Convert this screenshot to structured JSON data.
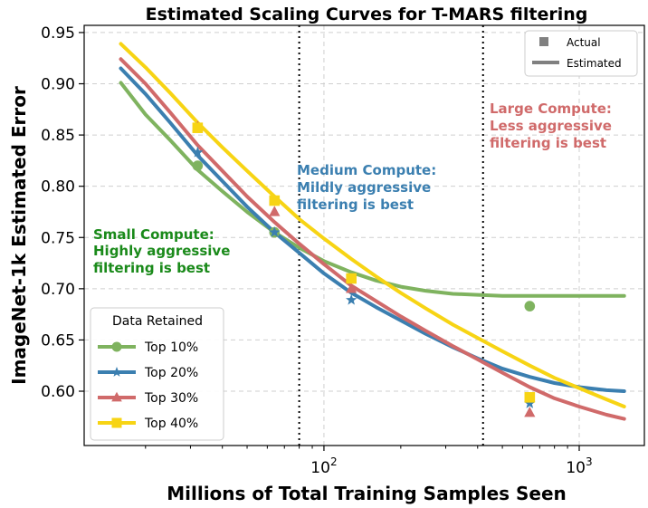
{
  "chart_data": {
    "type": "line",
    "title": "Estimated Scaling Curves for T-MARS filtering",
    "xlabel": "Millions of Total Training Samples Seen",
    "ylabel": "ImageNet-1k Estimated Error",
    "xscale": "log",
    "xlim": [
      11.5,
      1800
    ],
    "ylim": [
      0.547,
      0.957
    ],
    "x_ticks": [
      {
        "value": 100,
        "base": "10",
        "exp": "2"
      },
      {
        "value": 1000,
        "base": "10",
        "exp": "3"
      }
    ],
    "y_ticks": [
      0.6,
      0.65,
      0.7,
      0.75,
      0.8,
      0.85,
      0.9,
      0.95
    ],
    "y_tick_labels": [
      "0.60",
      "0.65",
      "0.70",
      "0.75",
      "0.80",
      "0.85",
      "0.90",
      "0.95"
    ],
    "vlines": [
      80,
      420
    ],
    "grid": true,
    "legend_title": "Data Retained",
    "series": [
      {
        "name": "Top 10%",
        "color": "#7fb35f",
        "marker": "circle",
        "curve_x": [
          16,
          20,
          25,
          32,
          40,
          50,
          64,
          80,
          100,
          128,
          160,
          200,
          250,
          320,
          400,
          500,
          640,
          800,
          1000,
          1280,
          1500
        ],
        "curve_y": [
          0.901,
          0.87,
          0.845,
          0.816,
          0.795,
          0.775,
          0.755,
          0.74,
          0.727,
          0.716,
          0.708,
          0.702,
          0.698,
          0.695,
          0.694,
          0.693,
          0.693,
          0.693,
          0.693,
          0.693,
          0.693
        ],
        "actual_x": [
          32,
          64,
          640
        ],
        "actual_y": [
          0.82,
          0.755,
          0.683
        ]
      },
      {
        "name": "Top 20%",
        "color": "#3b7fb0",
        "marker": "star",
        "curve_x": [
          16,
          20,
          25,
          32,
          40,
          50,
          64,
          80,
          100,
          128,
          160,
          200,
          250,
          320,
          400,
          500,
          640,
          800,
          1000,
          1280,
          1500
        ],
        "curve_y": [
          0.915,
          0.89,
          0.862,
          0.83,
          0.805,
          0.78,
          0.755,
          0.735,
          0.715,
          0.696,
          0.682,
          0.669,
          0.656,
          0.643,
          0.632,
          0.622,
          0.614,
          0.608,
          0.604,
          0.601,
          0.6
        ],
        "actual_x": [
          32,
          64,
          128,
          640
        ],
        "actual_y": [
          0.833,
          0.755,
          0.689,
          0.588
        ]
      },
      {
        "name": "Top 30%",
        "color": "#d06a6a",
        "marker": "triangle",
        "curve_x": [
          16,
          20,
          25,
          32,
          40,
          50,
          64,
          80,
          100,
          128,
          160,
          200,
          250,
          320,
          400,
          500,
          640,
          800,
          1000,
          1280,
          1500
        ],
        "curve_y": [
          0.924,
          0.9,
          0.872,
          0.84,
          0.815,
          0.79,
          0.765,
          0.744,
          0.724,
          0.703,
          0.688,
          0.673,
          0.659,
          0.644,
          0.631,
          0.618,
          0.604,
          0.593,
          0.585,
          0.577,
          0.573
        ],
        "actual_x": [
          32,
          64,
          128,
          640
        ],
        "actual_y": [
          0.858,
          0.775,
          0.7,
          0.579
        ]
      },
      {
        "name": "Top 40%",
        "color": "#f7d414",
        "marker": "square",
        "curve_x": [
          16,
          20,
          25,
          32,
          40,
          50,
          64,
          80,
          100,
          128,
          160,
          200,
          250,
          320,
          400,
          500,
          640,
          800,
          1000,
          1280,
          1500
        ],
        "curve_y": [
          0.939,
          0.916,
          0.891,
          0.862,
          0.838,
          0.815,
          0.79,
          0.768,
          0.749,
          0.729,
          0.712,
          0.696,
          0.681,
          0.665,
          0.652,
          0.639,
          0.625,
          0.613,
          0.603,
          0.592,
          0.585
        ],
        "actual_x": [
          32,
          64,
          128,
          640
        ],
        "actual_y": [
          0.857,
          0.786,
          0.71,
          0.594
        ]
      }
    ],
    "annotations": [
      {
        "lines": [
          "Small Compute:",
          "Highly aggressive",
          "filtering is best"
        ],
        "color": "#1a8a1a"
      },
      {
        "lines": [
          "Medium Compute:",
          "Mildly aggressive",
          "filtering is best"
        ],
        "color": "#3b7fb0"
      },
      {
        "lines": [
          "Large Compute:",
          "Less aggressive",
          "filtering is best"
        ],
        "color": "#d06a6a"
      }
    ],
    "marker_legend": [
      {
        "label": "Actual"
      },
      {
        "label": "Estimated"
      }
    ],
    "marker_legend_color": "#808080"
  }
}
